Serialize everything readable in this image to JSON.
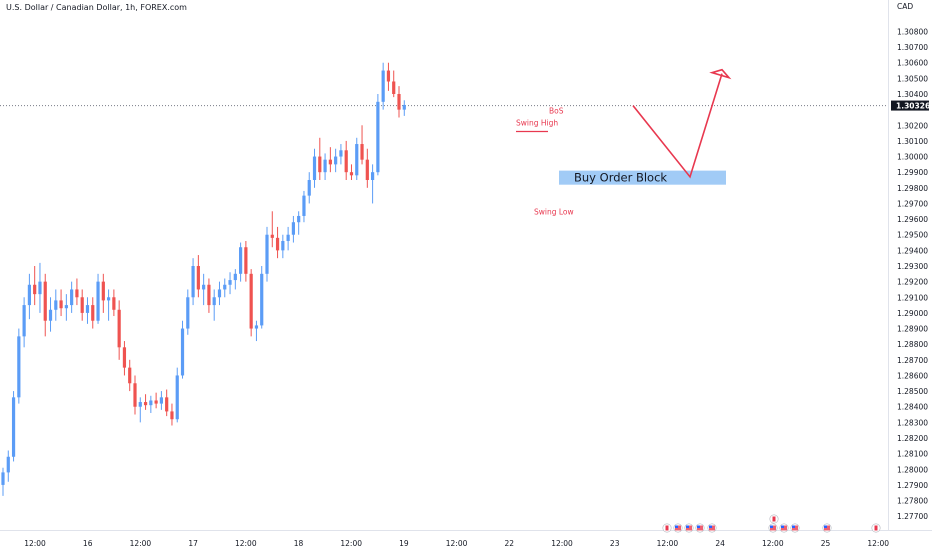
{
  "chart_data": {
    "type": "candlestick",
    "title": "U.S. Dollar / Canadian Dollar, 1h, FOREX.com",
    "currency": "CAD",
    "current_price": 1.30326,
    "current_price_label": "1.30326",
    "y_ticks": [
      "1.30800",
      "1.30700",
      "1.30600",
      "1.30500",
      "1.30400",
      "1.30200",
      "1.30100",
      "1.30000",
      "1.29900",
      "1.29800",
      "1.29700",
      "1.29600",
      "1.29500",
      "1.29400",
      "1.29300",
      "1.29200",
      "1.29100",
      "1.29000",
      "1.28900",
      "1.28800",
      "1.28700",
      "1.28600",
      "1.28500",
      "1.28400",
      "1.28300",
      "1.28200",
      "1.28100",
      "1.28000",
      "1.27900",
      "1.27800",
      "1.27700"
    ],
    "ylim": [
      1.2765,
      1.3095
    ],
    "x_ticks": [
      "12:00",
      "16",
      "12:00",
      "17",
      "12:00",
      "18",
      "12:00",
      "19",
      "12:00",
      "22",
      "12:00",
      "23",
      "12:00",
      "24",
      "12:00",
      "25",
      "12:00"
    ],
    "series": [
      {
        "values": [
          [
            1.279,
            1.2801,
            1.2783,
            1.2798
          ],
          [
            1.2798,
            1.2812,
            1.2792,
            1.2808
          ],
          [
            1.2808,
            1.285,
            1.2805,
            1.2846
          ],
          [
            1.2846,
            1.289,
            1.2842,
            1.2885
          ],
          [
            1.2885,
            1.291,
            1.2878,
            1.2905
          ],
          [
            1.2905,
            1.2925,
            1.2896,
            1.2918
          ],
          [
            1.2918,
            1.293,
            1.2905,
            1.2912
          ],
          [
            1.2912,
            1.2932,
            1.29,
            1.292
          ],
          [
            1.292,
            1.2925,
            1.2885,
            1.2895
          ],
          [
            1.2895,
            1.291,
            1.2888,
            1.2902
          ],
          [
            1.2902,
            1.2915,
            1.2895,
            1.2908
          ],
          [
            1.2908,
            1.2915,
            1.2898,
            1.2903
          ],
          [
            1.2903,
            1.2912,
            1.2895,
            1.2905
          ],
          [
            1.2905,
            1.292,
            1.29,
            1.2915
          ],
          [
            1.2915,
            1.2922,
            1.2905,
            1.291
          ],
          [
            1.291,
            1.2915,
            1.2895,
            1.29
          ],
          [
            1.29,
            1.291,
            1.2893,
            1.2905
          ],
          [
            1.2905,
            1.291,
            1.289,
            1.2895
          ],
          [
            1.2895,
            1.2925,
            1.2893,
            1.292
          ],
          [
            1.292,
            1.2925,
            1.29,
            1.2908
          ],
          [
            1.2908,
            1.2915,
            1.2895,
            1.291
          ],
          [
            1.291,
            1.2915,
            1.2898,
            1.2902
          ],
          [
            1.2902,
            1.2908,
            1.287,
            1.2878
          ],
          [
            1.2878,
            1.2882,
            1.286,
            1.2865
          ],
          [
            1.2865,
            1.287,
            1.285,
            1.2855
          ],
          [
            1.2855,
            1.286,
            1.2835,
            1.284
          ],
          [
            1.284,
            1.2846,
            1.283,
            1.2843
          ],
          [
            1.2843,
            1.2848,
            1.2838,
            1.2841
          ],
          [
            1.2841,
            1.2847,
            1.2836,
            1.2844
          ],
          [
            1.2844,
            1.2849,
            1.2839,
            1.2842
          ],
          [
            1.2842,
            1.285,
            1.2838,
            1.2846
          ],
          [
            1.2846,
            1.2851,
            1.2834,
            1.2837
          ],
          [
            1.2837,
            1.2842,
            1.2828,
            1.2832
          ],
          [
            1.2832,
            1.2865,
            1.283,
            1.286
          ],
          [
            1.286,
            1.2895,
            1.2858,
            1.289
          ],
          [
            1.289,
            1.2915,
            1.2886,
            1.291
          ],
          [
            1.291,
            1.2935,
            1.2905,
            1.293
          ],
          [
            1.293,
            1.2937,
            1.291,
            1.2915
          ],
          [
            1.2915,
            1.2925,
            1.2905,
            1.2918
          ],
          [
            1.2918,
            1.2922,
            1.29,
            1.2905
          ],
          [
            1.2905,
            1.2915,
            1.2895,
            1.291
          ],
          [
            1.291,
            1.292,
            1.2905,
            1.2915
          ],
          [
            1.2915,
            1.2922,
            1.291,
            1.2918
          ],
          [
            1.2918,
            1.2926,
            1.2912,
            1.2921
          ],
          [
            1.2921,
            1.2928,
            1.2915,
            1.2925
          ],
          [
            1.2925,
            1.2945,
            1.292,
            1.2942
          ],
          [
            1.2942,
            1.2946,
            1.292,
            1.2925
          ],
          [
            1.2925,
            1.2928,
            1.2885,
            1.289
          ],
          [
            1.289,
            1.2895,
            1.2882,
            1.2892
          ],
          [
            1.2892,
            1.293,
            1.289,
            1.2925
          ],
          [
            1.2925,
            1.2955,
            1.292,
            1.295
          ],
          [
            1.295,
            1.2965,
            1.2942,
            1.2948
          ],
          [
            1.2948,
            1.2955,
            1.2935,
            1.294
          ],
          [
            1.294,
            1.295,
            1.2935,
            1.2946
          ],
          [
            1.2946,
            1.2955,
            1.294,
            1.295
          ],
          [
            1.295,
            1.2962,
            1.2945,
            1.2958
          ],
          [
            1.2958,
            1.2965,
            1.295,
            1.2962
          ],
          [
            1.2962,
            1.2978,
            1.2958,
            1.2975
          ],
          [
            1.2975,
            1.299,
            1.297,
            1.2985
          ],
          [
            1.2985,
            1.3005,
            1.298,
            1.3
          ],
          [
            1.3,
            1.3012,
            1.2985,
            1.299
          ],
          [
            1.299,
            1.3002,
            1.2985,
            1.2998
          ],
          [
            1.2998,
            1.3006,
            1.299,
            1.2995
          ],
          [
            1.2995,
            1.3005,
            1.299,
            1.3
          ],
          [
            1.3,
            1.3008,
            1.2995,
            1.3004
          ],
          [
            1.3004,
            1.301,
            1.2985,
            1.299
          ],
          [
            1.299,
            1.2995,
            1.2985,
            1.2988
          ],
          [
            1.2988,
            1.3012,
            1.2985,
            1.3008
          ],
          [
            1.3008,
            1.302,
            1.2995,
            1.2998
          ],
          [
            1.2998,
            1.3005,
            1.298,
            1.2985
          ],
          [
            1.2985,
            1.2995,
            1.297,
            1.299
          ],
          [
            1.299,
            1.304,
            1.2988,
            1.3035
          ],
          [
            1.3035,
            1.306,
            1.303,
            1.3055
          ],
          [
            1.3055,
            1.306,
            1.3042,
            1.3048
          ],
          [
            1.3048,
            1.3055,
            1.3038,
            1.304
          ],
          [
            1.304,
            1.3045,
            1.3025,
            1.303
          ],
          [
            1.303,
            1.3036,
            1.3026,
            1.3033
          ]
        ]
      }
    ],
    "annotations": {
      "order_block": "Buy Order Block",
      "order_block_range": [
        1.2982,
        1.2991
      ],
      "swing_high": "Swing High",
      "swing_high_price": 1.3016,
      "bos": "BoS",
      "swing_low": "Swing Low",
      "projection": [
        1.30326,
        1.2987,
        1.3053
      ]
    },
    "events": [
      "ca",
      "us",
      "us",
      "us",
      "us",
      "ca",
      "us",
      "us",
      "us",
      "us",
      "ca"
    ]
  }
}
